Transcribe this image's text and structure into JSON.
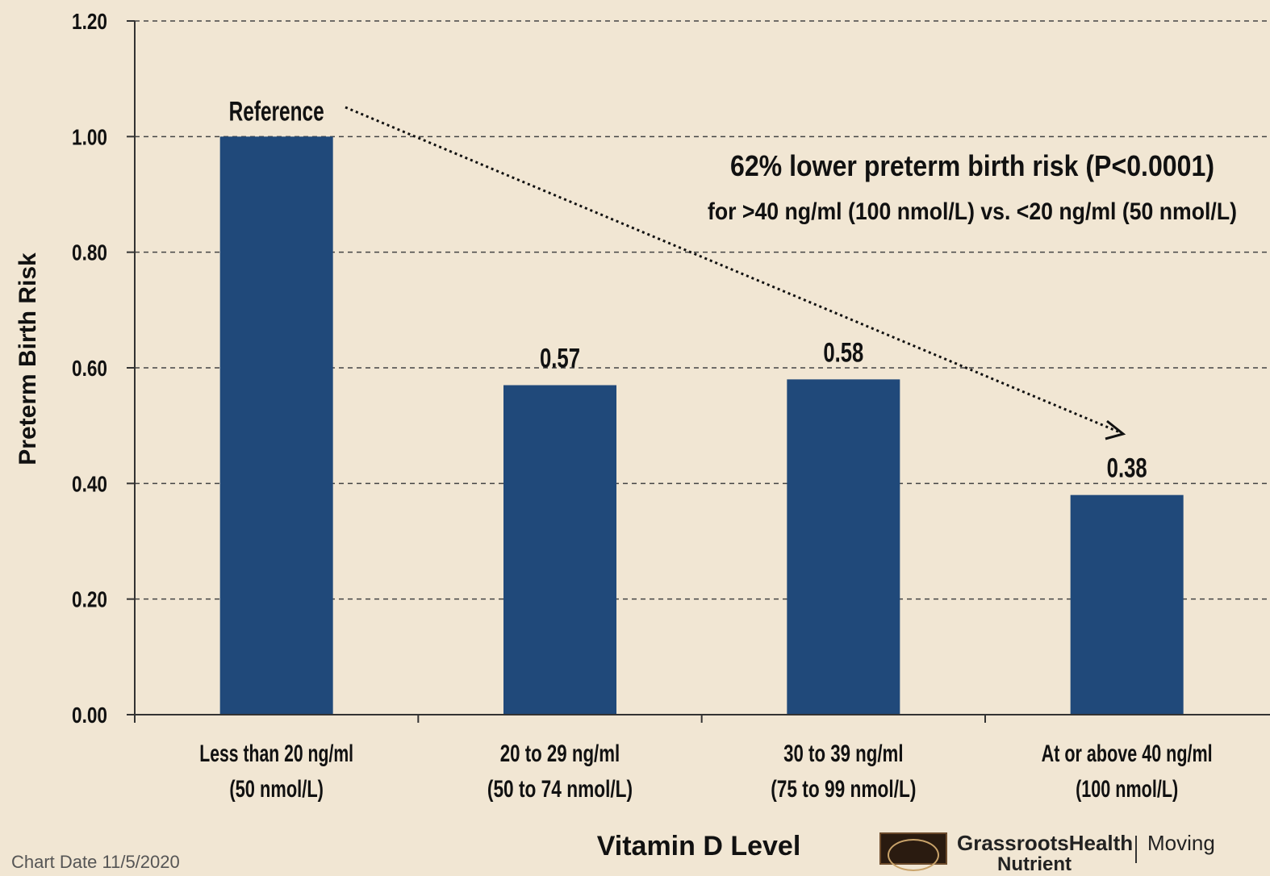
{
  "chart_data": {
    "type": "bar",
    "categories": [
      [
        "Less than 20 ng/ml",
        "(50 nmol/L)"
      ],
      [
        "20 to 29 ng/ml",
        "(50 to 74 nmol/L)"
      ],
      [
        "30 to 39 ng/ml",
        "(75 to 99 nmol/L)"
      ],
      [
        "At or above 40 ng/ml",
        "(100 nmol/L)"
      ]
    ],
    "values": [
      1.0,
      0.57,
      0.58,
      0.38
    ],
    "data_labels": [
      "Reference",
      "0.57",
      "0.58",
      "0.38"
    ],
    "xlabel": "Vitamin D Level",
    "ylabel": "Preterm Birth Risk",
    "ylim": [
      0,
      1.2
    ],
    "yticks": [
      "0.00",
      "0.20",
      "0.40",
      "0.60",
      "0.80",
      "1.00",
      "1.20"
    ],
    "grid": "dashed horizontal",
    "bar_color": "#20497a",
    "annotation": {
      "title": "62% lower preterm birth risk (P<0.0001)",
      "subtitle": "for >40 ng/ml (100 nmol/L) vs. <20 ng/ml (50 nmol/L)",
      "arrow": "dotted arrow from Reference to 0.38"
    }
  },
  "footer": {
    "date_text": "Chart Date 11/5/2020",
    "brand": "GrassrootsHealth",
    "brand_sub": "Nutrient",
    "tagline": "Moving"
  }
}
